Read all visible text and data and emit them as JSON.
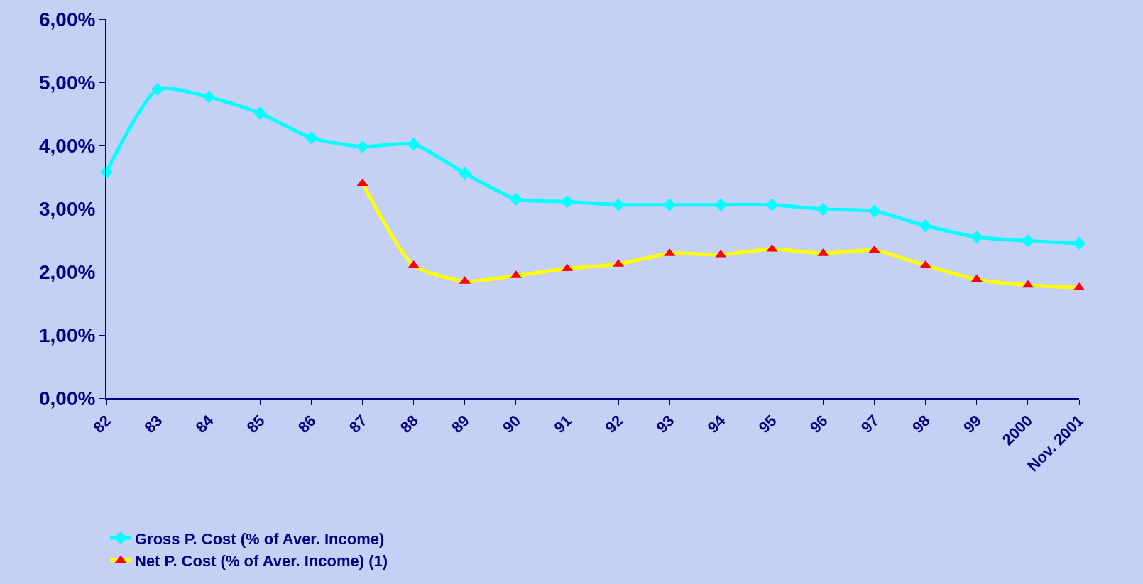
{
  "chart_data": {
    "type": "line",
    "categories": [
      "82",
      "83",
      "84",
      "85",
      "86",
      "87",
      "88",
      "89",
      "90",
      "91",
      "92",
      "93",
      "94",
      "95",
      "96",
      "97",
      "98",
      "99",
      "2000",
      "Nov. 2001"
    ],
    "series": [
      {
        "name": "Gross P. Cost (% of Aver. Income)",
        "color": "#00ffff",
        "marker": "diamond",
        "values": [
          3.58,
          4.89,
          4.77,
          4.51,
          4.12,
          3.98,
          4.02,
          3.56,
          3.15,
          3.11,
          3.06,
          3.06,
          3.06,
          3.06,
          2.99,
          2.96,
          2.73,
          2.55,
          2.49,
          2.45
        ]
      },
      {
        "name": "Net P. Cost (% of Aver. Income) (1)",
        "color": "#ffff00",
        "marker": "triangle",
        "values": [
          null,
          null,
          null,
          null,
          null,
          3.4,
          2.1,
          1.85,
          1.94,
          2.05,
          2.12,
          2.29,
          2.27,
          2.36,
          2.29,
          2.34,
          2.1,
          1.88,
          1.79,
          1.75
        ]
      }
    ],
    "ylim": [
      0,
      6
    ],
    "yticks": [
      {
        "value": 0,
        "label": "0,00%"
      },
      {
        "value": 1,
        "label": "1,00%"
      },
      {
        "value": 2,
        "label": "2,00%"
      },
      {
        "value": 3,
        "label": "3,00%"
      },
      {
        "value": 4,
        "label": "4,00%"
      },
      {
        "value": 5,
        "label": "5,00%"
      },
      {
        "value": 6,
        "label": "6,00%"
      }
    ],
    "grid": false,
    "legend": "bottom"
  }
}
